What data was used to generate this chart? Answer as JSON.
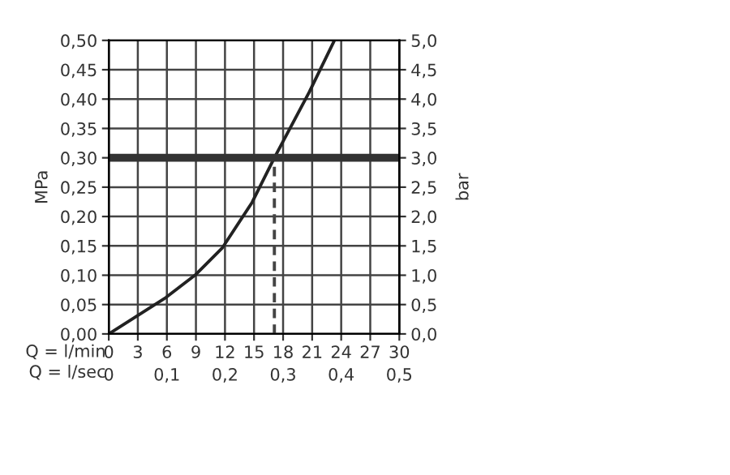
{
  "chart_data": {
    "type": "line",
    "ylabel": "MPa",
    "y2label": "bar",
    "xlabel": "Q = l/min",
    "x2label": "Q = l/sec",
    "xlim": [
      0,
      30
    ],
    "xticks": [
      0,
      3,
      6,
      9,
      12,
      15,
      18,
      21,
      24,
      27,
      30
    ],
    "x2lim": [
      0,
      0.5
    ],
    "x2ticks": [
      0,
      {
        "value": 0.1,
        "label": "0,1"
      },
      {
        "value": 0.2,
        "label": "0,2"
      },
      {
        "value": 0.3,
        "label": "0,3"
      },
      {
        "value": 0.4,
        "label": "0,4"
      },
      {
        "value": 0.5,
        "label": "0,5"
      }
    ],
    "ylim": [
      0,
      0.5
    ],
    "yticks": [
      {
        "value": 0,
        "label": "0,00"
      },
      {
        "value": 0.05,
        "label": "0,05"
      },
      {
        "value": 0.1,
        "label": "0,10"
      },
      {
        "value": 0.15,
        "label": "0,15"
      },
      {
        "value": 0.2,
        "label": "0,20"
      },
      {
        "value": 0.25,
        "label": "0,25"
      },
      {
        "value": 0.3,
        "label": "0,30"
      },
      {
        "value": 0.35,
        "label": "0,35"
      },
      {
        "value": 0.4,
        "label": "0,40"
      },
      {
        "value": 0.45,
        "label": "0,45"
      },
      {
        "value": 0.5,
        "label": "0,50"
      }
    ],
    "y2lim": [
      0,
      5
    ],
    "y2ticks": [
      {
        "value": 0,
        "label": "0,0"
      },
      {
        "value": 0.5,
        "label": "0,5"
      },
      {
        "value": 1,
        "label": "1,0"
      },
      {
        "value": 1.5,
        "label": "1,5"
      },
      {
        "value": 2,
        "label": "2,0"
      },
      {
        "value": 2.5,
        "label": "2,5"
      },
      {
        "value": 3,
        "label": "3,0"
      },
      {
        "value": 3.5,
        "label": "3,5"
      },
      {
        "value": 4,
        "label": "4,0"
      },
      {
        "value": 4.5,
        "label": "4,5"
      },
      {
        "value": 5,
        "label": "5,0"
      }
    ],
    "grid": true,
    "marker": "none",
    "series": [
      {
        "color": "#222222",
        "line_style": "solid",
        "x": [
          0,
          5.9,
          8.9,
          11.7,
          14.8,
          17.1,
          20.7,
          23.3
        ],
        "values": [
          0,
          0.062,
          0.1,
          0.146,
          0.224,
          0.3,
          0.412,
          0.5
        ]
      },
      {
        "color": "#444444",
        "line_style": "dashed",
        "x": [
          17.1,
          17.1
        ],
        "values": [
          0,
          0.3
        ]
      }
    ],
    "ref_lines": [
      {
        "axis": "y",
        "value": 0.3,
        "color": "#333333",
        "line_style": "solid"
      }
    ]
  }
}
